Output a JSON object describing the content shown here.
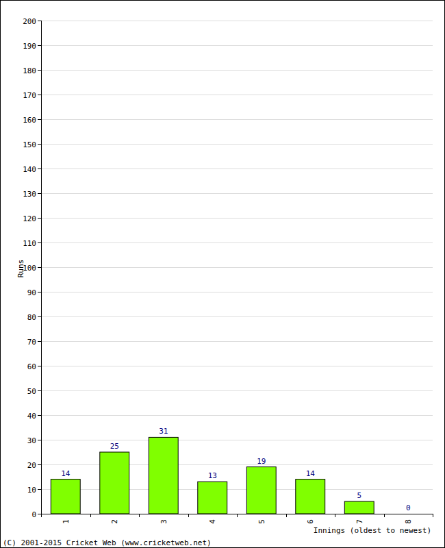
{
  "chart_data": {
    "type": "bar",
    "y_label": "Runs",
    "x_label": "Innings (oldest to newest)",
    "annotations": [
      "(C) 2001-2015 Cricket Web (www.cricketweb.net)"
    ],
    "categories": [
      "1",
      "2",
      "3",
      "4",
      "5",
      "6",
      "7",
      "8"
    ],
    "values": [
      14,
      25,
      31,
      13,
      19,
      14,
      5,
      0
    ],
    "color": "#80ff00",
    "ylim": [
      0,
      200
    ],
    "yticks": [
      0,
      10,
      20,
      30,
      40,
      50,
      60,
      70,
      80,
      90,
      100,
      110,
      120,
      130,
      140,
      150,
      160,
      170,
      180,
      190,
      200
    ],
    "grid": true,
    "data_labels": true
  }
}
